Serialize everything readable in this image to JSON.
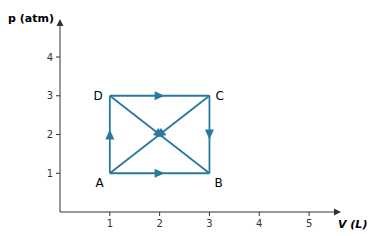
{
  "chart_data": {
    "type": "line",
    "xlabel": "V (L)",
    "ylabel": "p (atm)",
    "xlim": [
      0,
      5.5
    ],
    "ylim": [
      0,
      4.8
    ],
    "xticks": [
      1,
      2,
      3,
      4,
      5
    ],
    "yticks": [
      1,
      2,
      3,
      4
    ],
    "color": "#2878A0",
    "marker": "arrow",
    "series": [
      {
        "x": [
          1.0,
          3.0
        ],
        "values": [
          1.0,
          1.0
        ]
      },
      {
        "x": [
          1.0,
          3.0
        ],
        "values": [
          3.0,
          3.0
        ]
      },
      {
        "x": [
          1.0,
          1.0
        ],
        "values": [
          1.0,
          3.0
        ]
      },
      {
        "x": [
          3.0,
          3.0
        ],
        "values": [
          3.0,
          1.0
        ]
      },
      {
        "x": [
          1.0,
          3.0
        ],
        "values": [
          3.0,
          1.0
        ]
      },
      {
        "x": [
          3.0,
          1.0
        ],
        "values": [
          3.0,
          1.0
        ]
      }
    ],
    "annotations": [
      {
        "text": "A",
        "x": 1.0,
        "y": 1.0
      },
      {
        "text": "B",
        "x": 3.0,
        "y": 1.0
      },
      {
        "text": "C",
        "x": 3.0,
        "y": 3.0
      },
      {
        "text": "D",
        "x": 1.0,
        "y": 3.0
      }
    ]
  }
}
